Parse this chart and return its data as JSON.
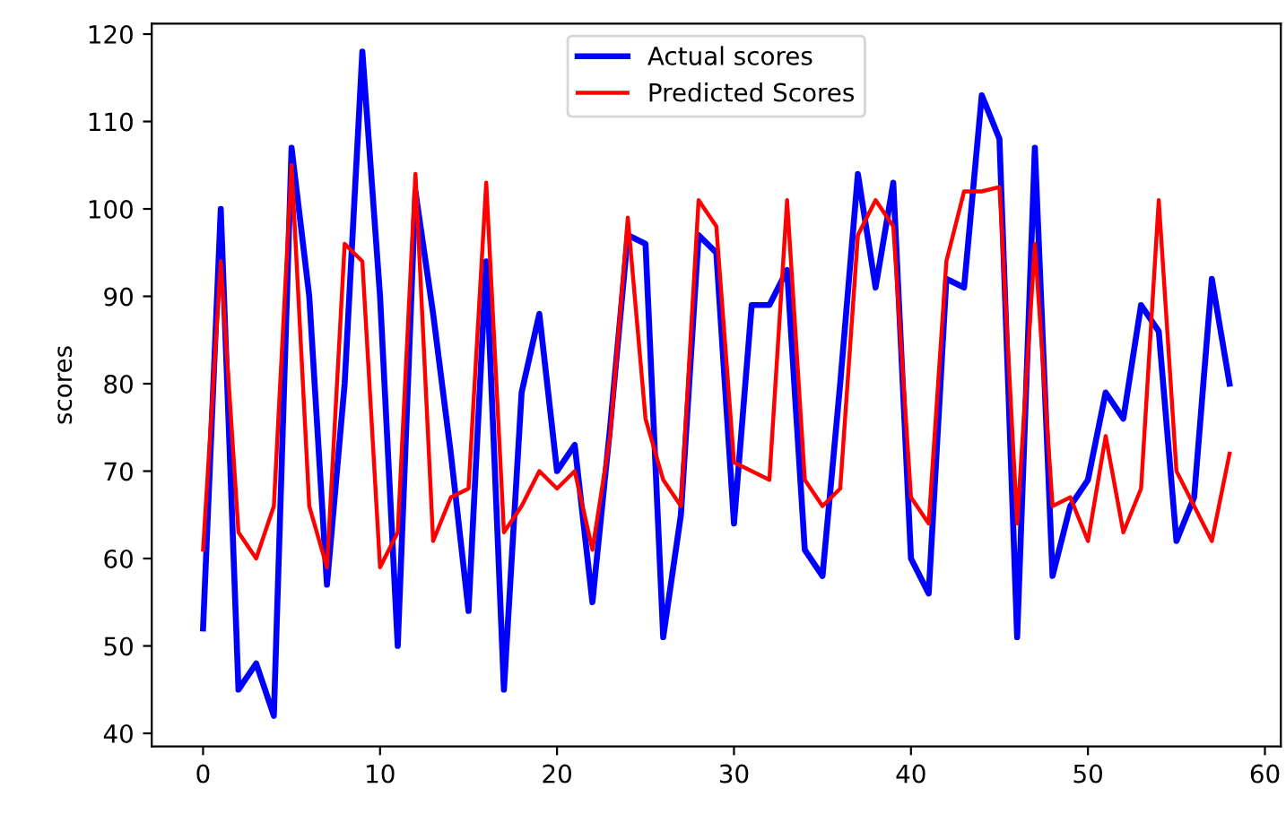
{
  "chart_data": {
    "type": "line",
    "ylabel": "scores",
    "x": [
      0,
      1,
      2,
      3,
      4,
      5,
      6,
      7,
      8,
      9,
      10,
      11,
      12,
      13,
      14,
      15,
      16,
      17,
      18,
      19,
      20,
      21,
      22,
      23,
      24,
      25,
      26,
      27,
      28,
      29,
      30,
      31,
      32,
      33,
      34,
      35,
      36,
      37,
      38,
      39,
      40,
      41,
      42,
      43,
      44,
      45,
      46,
      47,
      48,
      49,
      50,
      51,
      52,
      53,
      54,
      55,
      56,
      57,
      58
    ],
    "series": [
      {
        "name": "Actual scores",
        "color": "#0000ff",
        "values": [
          52,
          100,
          45,
          48,
          42,
          107,
          90,
          57,
          80,
          118,
          90,
          50,
          102,
          88,
          72,
          54,
          94,
          45,
          79,
          88,
          70,
          73,
          55,
          75,
          97,
          96,
          51,
          65,
          97,
          95,
          64,
          89,
          89,
          93,
          61,
          58,
          80,
          104,
          91,
          103,
          60,
          56,
          92,
          91,
          113,
          108,
          51,
          107,
          58,
          66,
          69,
          79,
          76,
          89,
          86,
          62,
          67,
          92,
          80
        ]
      },
      {
        "name": "Predicted Scores",
        "color": "#ff0000",
        "values": [
          61,
          94,
          63,
          60,
          66,
          105,
          66,
          59,
          96,
          94,
          59,
          63,
          104,
          62,
          67,
          68,
          103,
          63,
          66,
          70,
          68,
          70,
          61,
          74,
          99,
          76,
          69,
          66,
          101,
          98,
          71,
          70,
          69,
          101,
          69,
          66,
          68,
          97,
          101,
          98,
          67,
          64,
          94,
          102,
          102,
          102.5,
          64,
          96,
          66,
          67,
          62,
          74,
          63,
          68,
          101,
          70,
          66,
          62,
          72
        ]
      }
    ],
    "xlim": [
      -2.9,
      60.9
    ],
    "ylim": [
      38.5,
      121.2
    ],
    "xticks": [
      0,
      10,
      20,
      30,
      40,
      50,
      60
    ],
    "yticks": [
      40,
      50,
      60,
      70,
      80,
      90,
      100,
      110,
      120
    ],
    "legend": "top",
    "grid": false
  }
}
